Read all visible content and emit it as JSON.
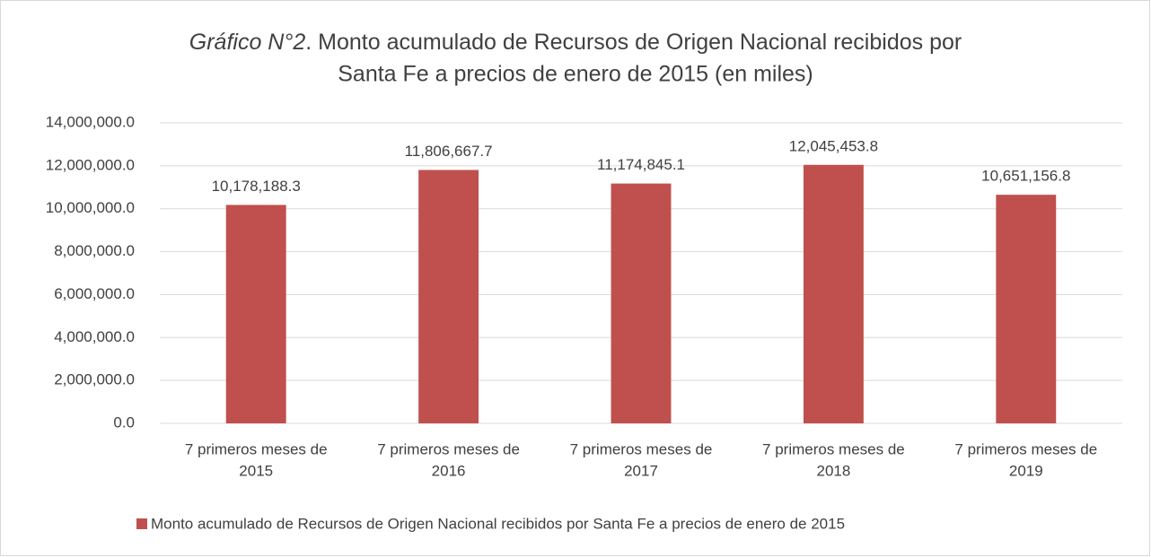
{
  "chart_data": {
    "type": "bar",
    "title": {
      "italic": "Gráfico N°2",
      "lines": [
        ". Monto acumulado de Recursos de Origen Nacional recibidos por",
        "Santa Fe a precios de enero de 2015 (en miles)"
      ]
    },
    "categories": [
      [
        "7 primeros meses de",
        "2015"
      ],
      [
        "7 primeros meses de",
        "2016"
      ],
      [
        "7 primeros meses de",
        "2017"
      ],
      [
        "7 primeros meses de",
        "2018"
      ],
      [
        "7 primeros meses de",
        "2019"
      ]
    ],
    "series": [
      {
        "name": "Monto acumulado de Recursos de Origen Nacional recibidos por Santa Fe a precios de enero de 2015",
        "color": "#c0504d",
        "values": [
          10178188.3,
          11806667.7,
          11174845.1,
          12045453.8,
          10651156.8
        ],
        "value_labels": [
          "10,178,188.3",
          "11,806,667.7",
          "11,174,845.1",
          "12,045,453.8",
          "10,651,156.8"
        ]
      }
    ],
    "ylim": [
      0,
      14000000
    ],
    "yticks": [
      {
        "value": 0,
        "label": "0.0"
      },
      {
        "value": 2000000,
        "label": "2,000,000.0"
      },
      {
        "value": 4000000,
        "label": "4,000,000.0"
      },
      {
        "value": 6000000,
        "label": "6,000,000.0"
      },
      {
        "value": 8000000,
        "label": "8,000,000.0"
      },
      {
        "value": 10000000,
        "label": "10,000,000.0"
      },
      {
        "value": 12000000,
        "label": "12,000,000.0"
      },
      {
        "value": 14000000,
        "label": "14,000,000.0"
      }
    ],
    "grid": true,
    "legend": "bottom"
  }
}
